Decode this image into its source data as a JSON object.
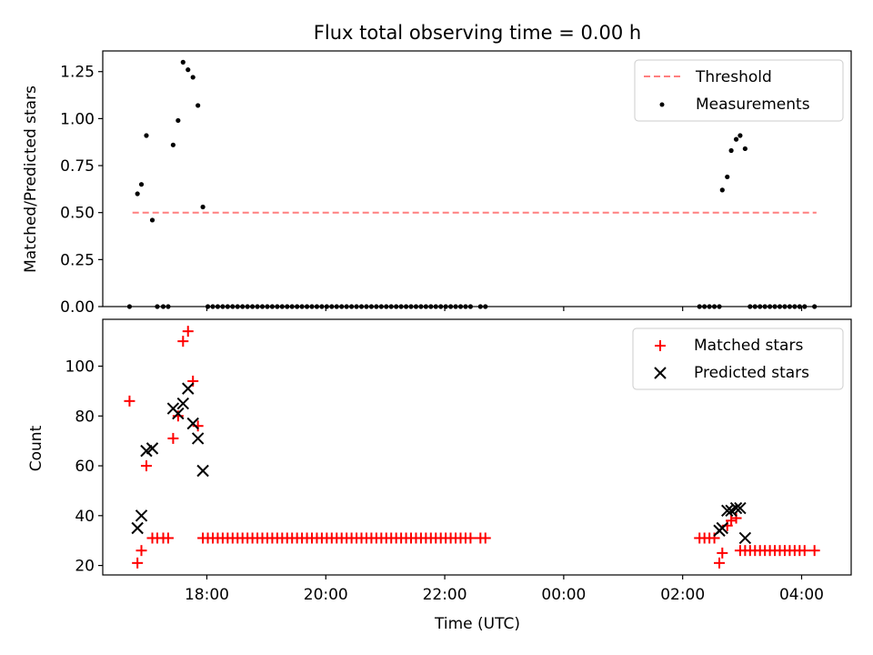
{
  "chart_data": [
    {
      "type": "scatter",
      "title": "Flux total observing time = 0.00 h",
      "xlabel": "",
      "ylabel": "Matched/Predicted stars",
      "ylim": [
        0,
        1.36
      ],
      "xlim": [
        "16:15",
        "04:50"
      ],
      "yticks": [
        "0.00",
        "0.25",
        "0.50",
        "0.75",
        "1.00",
        "1.25"
      ],
      "xticks": [
        "18:00",
        "20:00",
        "22:00",
        "00:00",
        "02:00",
        "04:00"
      ],
      "legend_position": "top-right",
      "legend": [
        {
          "name": "Threshold",
          "style": "dashed-line",
          "color": "#ff7f7f"
        },
        {
          "name": "Measurements",
          "style": "dot",
          "color": "#000000"
        }
      ],
      "threshold": {
        "value": 0.5,
        "x_start": "16:45",
        "x_end": "04:15"
      },
      "series": [
        {
          "name": "Measurements",
          "color": "#000000",
          "x": [
            "16:42",
            "16:50",
            "16:54",
            "16:59",
            "17:05",
            "17:10",
            "17:16",
            "17:21",
            "17:26",
            "17:31",
            "17:36",
            "17:41",
            "17:46",
            "17:51",
            "17:56",
            "18:01",
            "18:06",
            "18:11",
            "18:16",
            "18:21",
            "18:26",
            "18:31",
            "18:36",
            "18:41",
            "18:46",
            "18:51",
            "18:56",
            "19:01",
            "19:06",
            "19:11",
            "19:16",
            "19:21",
            "19:26",
            "19:31",
            "19:36",
            "19:41",
            "19:46",
            "19:51",
            "19:56",
            "20:01",
            "20:06",
            "20:11",
            "20:16",
            "20:21",
            "20:26",
            "20:31",
            "20:36",
            "20:41",
            "20:46",
            "20:51",
            "20:56",
            "21:01",
            "21:06",
            "21:11",
            "21:16",
            "21:21",
            "21:26",
            "21:31",
            "21:36",
            "21:41",
            "21:46",
            "21:51",
            "21:56",
            "22:01",
            "22:06",
            "22:11",
            "22:16",
            "22:21",
            "22:26",
            "22:36",
            "22:41",
            "02:17",
            "02:22",
            "02:27",
            "02:32",
            "02:37",
            "02:40",
            "02:45",
            "02:49",
            "02:54",
            "02:58",
            "03:03",
            "03:08",
            "03:13",
            "03:18",
            "03:23",
            "03:28",
            "03:33",
            "03:38",
            "03:43",
            "03:48",
            "03:53",
            "03:58",
            "04:03",
            "04:13"
          ],
          "values": [
            0.0,
            0.6,
            0.65,
            0.91,
            0.46,
            0.0,
            0.0,
            0.0,
            0.86,
            0.99,
            1.3,
            1.26,
            1.22,
            1.07,
            0.53,
            0.0,
            0.0,
            0.0,
            0.0,
            0.0,
            0.0,
            0.0,
            0.0,
            0.0,
            0.0,
            0.0,
            0.0,
            0.0,
            0.0,
            0.0,
            0.0,
            0.0,
            0.0,
            0.0,
            0.0,
            0.0,
            0.0,
            0.0,
            0.0,
            0.0,
            0.0,
            0.0,
            0.0,
            0.0,
            0.0,
            0.0,
            0.0,
            0.0,
            0.0,
            0.0,
            0.0,
            0.0,
            0.0,
            0.0,
            0.0,
            0.0,
            0.0,
            0.0,
            0.0,
            0.0,
            0.0,
            0.0,
            0.0,
            0.0,
            0.0,
            0.0,
            0.0,
            0.0,
            0.0,
            0.0,
            0.0,
            0.0,
            0.0,
            0.0,
            0.0,
            0.0,
            0.62,
            0.69,
            0.83,
            0.89,
            0.91,
            0.84,
            0.0,
            0.0,
            0.0,
            0.0,
            0.0,
            0.0,
            0.0,
            0.0,
            0.0,
            0.0,
            0.0,
            0.0,
            0.0
          ]
        }
      ]
    },
    {
      "type": "scatter",
      "title": "",
      "xlabel": "Time (UTC)",
      "ylabel": "Count",
      "ylim": [
        16.2,
        118.8
      ],
      "xlim": [
        "16:15",
        "04:50"
      ],
      "yticks": [
        "20",
        "40",
        "60",
        "80",
        "100"
      ],
      "xticks": [
        "18:00",
        "20:00",
        "22:00",
        "00:00",
        "02:00",
        "04:00"
      ],
      "legend_position": "top-right",
      "legend": [
        {
          "name": "Matched stars",
          "style": "plus",
          "color": "#ff0000"
        },
        {
          "name": "Predicted stars",
          "style": "x",
          "color": "#000000"
        }
      ],
      "series": [
        {
          "name": "Matched stars",
          "color": "#ff0000",
          "x": [
            "16:42",
            "16:50",
            "16:54",
            "16:59",
            "17:05",
            "17:10",
            "17:16",
            "17:21",
            "17:26",
            "17:31",
            "17:36",
            "17:41",
            "17:46",
            "17:51",
            "17:56",
            "18:01",
            "18:06",
            "18:11",
            "18:16",
            "18:21",
            "18:26",
            "18:31",
            "18:36",
            "18:41",
            "18:46",
            "18:51",
            "18:56",
            "19:01",
            "19:06",
            "19:11",
            "19:16",
            "19:21",
            "19:26",
            "19:31",
            "19:36",
            "19:41",
            "19:46",
            "19:51",
            "19:56",
            "20:01",
            "20:06",
            "20:11",
            "20:16",
            "20:21",
            "20:26",
            "20:31",
            "20:36",
            "20:41",
            "20:46",
            "20:51",
            "20:56",
            "21:01",
            "21:06",
            "21:11",
            "21:16",
            "21:21",
            "21:26",
            "21:31",
            "21:36",
            "21:41",
            "21:46",
            "21:51",
            "21:56",
            "22:01",
            "22:06",
            "22:11",
            "22:16",
            "22:21",
            "22:26",
            "22:36",
            "22:41",
            "02:17",
            "02:22",
            "02:27",
            "02:32",
            "02:37",
            "02:40",
            "02:45",
            "02:49",
            "02:54",
            "02:58",
            "03:03",
            "03:08",
            "03:13",
            "03:18",
            "03:23",
            "03:28",
            "03:33",
            "03:38",
            "03:43",
            "03:48",
            "03:53",
            "03:58",
            "04:03",
            "04:13"
          ],
          "values": [
            86,
            21,
            26,
            60,
            31,
            31,
            31,
            31,
            71,
            80,
            110,
            114,
            94,
            76,
            31,
            31,
            31,
            31,
            31,
            31,
            31,
            31,
            31,
            31,
            31,
            31,
            31,
            31,
            31,
            31,
            31,
            31,
            31,
            31,
            31,
            31,
            31,
            31,
            31,
            31,
            31,
            31,
            31,
            31,
            31,
            31,
            31,
            31,
            31,
            31,
            31,
            31,
            31,
            31,
            31,
            31,
            31,
            31,
            31,
            31,
            31,
            31,
            31,
            31,
            31,
            31,
            31,
            31,
            31,
            31,
            31,
            31,
            31,
            31,
            31,
            21,
            25,
            36,
            38,
            39,
            26,
            26,
            26,
            26,
            26,
            26,
            26,
            26,
            26,
            26,
            26,
            26,
            26,
            26,
            26
          ]
        },
        {
          "name": "Predicted stars",
          "color": "#000000",
          "x": [
            "16:50",
            "16:54",
            "16:59",
            "17:05",
            "17:26",
            "17:31",
            "17:36",
            "17:41",
            "17:46",
            "17:51",
            "17:56",
            "02:37",
            "02:40",
            "02:45",
            "02:49",
            "02:54",
            "02:58",
            "03:03"
          ],
          "values": [
            35,
            40,
            66,
            67,
            83,
            81,
            85,
            91,
            77,
            71,
            58,
            34,
            35,
            42,
            42,
            43,
            43,
            31
          ]
        }
      ]
    }
  ]
}
